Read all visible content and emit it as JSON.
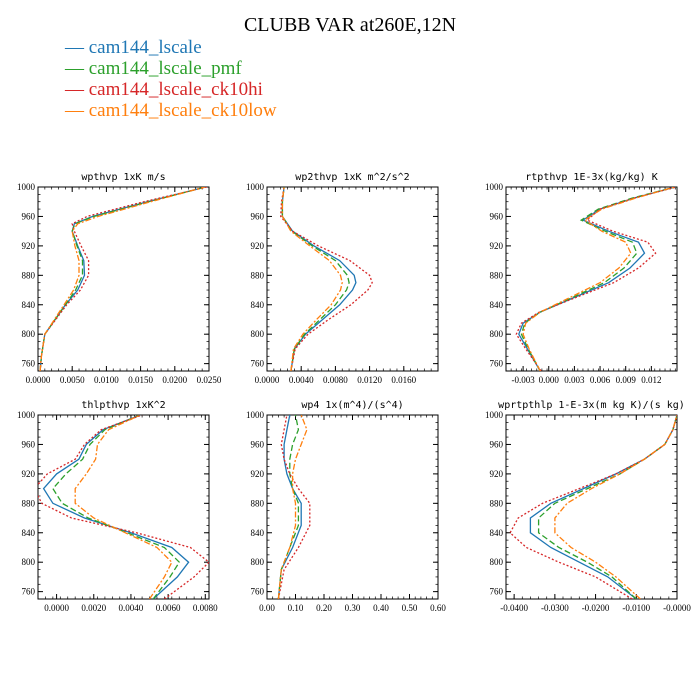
{
  "title": "CLUBB VAR at260E,12N",
  "legend": [
    {
      "name": "cam144_lscale",
      "color": "#1f77b4",
      "dash": "solid"
    },
    {
      "name": "cam144_lscale_pmf",
      "color": "#2ca02c",
      "dash": "dash"
    },
    {
      "name": "cam144_lscale_ck10hi",
      "color": "#d62728",
      "dash": "dot"
    },
    {
      "name": "cam144_lscale_ck10low",
      "color": "#ff7f0e",
      "dash": "dashdot"
    }
  ],
  "chart_data": [
    {
      "type": "line",
      "title": "wpthvp  1xK m/s",
      "xlim": [
        0,
        0.025
      ],
      "ylim": [
        1000,
        750
      ],
      "xticks": [
        "0.0000",
        "0.0050",
        "0.0100",
        "0.0150",
        "0.0200",
        "0.0250"
      ],
      "xtick_values": [
        0,
        0.005,
        0.01,
        0.015,
        0.02,
        0.025
      ],
      "yticks": [
        760,
        800,
        840,
        880,
        920,
        960,
        1000
      ],
      "y": [
        750,
        770,
        800,
        820,
        840,
        860,
        880,
        900,
        920,
        940,
        950,
        960,
        980,
        1000
      ],
      "series": [
        {
          "name": "cam144_lscale",
          "values": [
            0.0003,
            0.0005,
            0.001,
            0.0025,
            0.004,
            0.0058,
            0.0068,
            0.0067,
            0.0058,
            0.005,
            0.0053,
            0.008,
            0.016,
            0.0245
          ]
        },
        {
          "name": "cam144_lscale_pmf",
          "values": [
            0.0003,
            0.0005,
            0.001,
            0.0025,
            0.004,
            0.0055,
            0.0065,
            0.0065,
            0.0057,
            0.005,
            0.0054,
            0.0082,
            0.0162,
            0.0245
          ]
        },
        {
          "name": "cam144_lscale_ck10hi",
          "values": [
            0.0003,
            0.0005,
            0.001,
            0.0026,
            0.0042,
            0.0062,
            0.0074,
            0.0074,
            0.0063,
            0.0053,
            0.005,
            0.0072,
            0.0155,
            0.0247
          ]
        },
        {
          "name": "cam144_lscale_ck10low",
          "values": [
            0.0003,
            0.0005,
            0.001,
            0.0024,
            0.0038,
            0.0052,
            0.006,
            0.006,
            0.0054,
            0.005,
            0.0058,
            0.0088,
            0.0165,
            0.0244
          ]
        }
      ]
    },
    {
      "type": "line",
      "title": "wp2thvp  1xK m^2/s^2",
      "xlim": [
        0,
        0.02
      ],
      "ylim": [
        1000,
        750
      ],
      "xticks": [
        "0.0000",
        "0.0040",
        "0.0080",
        "0.0120",
        "0.0160"
      ],
      "xtick_values": [
        0,
        0.004,
        0.008,
        0.012,
        0.016
      ],
      "yticks": [
        760,
        800,
        840,
        880,
        920,
        960,
        1000
      ],
      "y": [
        750,
        780,
        800,
        820,
        840,
        860,
        870,
        880,
        900,
        920,
        940,
        960,
        980,
        1000
      ],
      "series": [
        {
          "name": "cam144_lscale",
          "values": [
            0.0028,
            0.0032,
            0.0045,
            0.0065,
            0.0085,
            0.01,
            0.0104,
            0.0102,
            0.0085,
            0.0055,
            0.003,
            0.0018,
            0.0018,
            0.002
          ]
        },
        {
          "name": "cam144_lscale_pmf",
          "values": [
            0.0028,
            0.0032,
            0.0044,
            0.0062,
            0.008,
            0.0093,
            0.0096,
            0.0094,
            0.008,
            0.0053,
            0.0029,
            0.0018,
            0.0018,
            0.002
          ]
        },
        {
          "name": "cam144_lscale_ck10hi",
          "values": [
            0.0028,
            0.0033,
            0.0048,
            0.0072,
            0.0098,
            0.0118,
            0.0123,
            0.012,
            0.0097,
            0.006,
            0.003,
            0.0016,
            0.0017,
            0.002
          ]
        },
        {
          "name": "cam144_lscale_ck10low",
          "values": [
            0.0028,
            0.0031,
            0.0042,
            0.0058,
            0.0075,
            0.0086,
            0.0088,
            0.0086,
            0.0073,
            0.005,
            0.0028,
            0.0018,
            0.0018,
            0.002
          ]
        }
      ]
    },
    {
      "type": "line",
      "title": "rtpthvp  1E-3x(kg/kg) K",
      "xlim": [
        -0.005,
        0.015
      ],
      "ylim": [
        1000,
        750
      ],
      "xticks": [
        "-0.003",
        "0.000",
        "0.003",
        "0.006",
        "0.009",
        "0.012"
      ],
      "xtick_values": [
        -0.003,
        0,
        0.003,
        0.006,
        0.009,
        0.012
      ],
      "yticks": [
        760,
        800,
        840,
        880,
        920,
        960,
        1000
      ],
      "y": [
        750,
        780,
        800,
        815,
        830,
        850,
        870,
        890,
        910,
        925,
        940,
        955,
        970,
        985,
        1000
      ],
      "series": [
        {
          "name": "cam144_lscale",
          "values": [
            -0.001,
            -0.0025,
            -0.0035,
            -0.003,
            -0.001,
            0.003,
            0.007,
            0.0095,
            0.0112,
            0.0105,
            0.007,
            0.004,
            0.006,
            0.01,
            0.0148
          ]
        },
        {
          "name": "cam144_lscale_pmf",
          "values": [
            -0.001,
            -0.0024,
            -0.0032,
            -0.0028,
            -0.001,
            0.0028,
            0.0065,
            0.0088,
            0.0103,
            0.0098,
            0.0066,
            0.0038,
            0.0058,
            0.0098,
            0.0148
          ]
        },
        {
          "name": "cam144_lscale_ck10hi",
          "values": [
            -0.0009,
            -0.0027,
            -0.0038,
            -0.0032,
            -0.0011,
            0.0032,
            0.0076,
            0.0105,
            0.0125,
            0.0116,
            0.0075,
            0.0045,
            0.006,
            0.01,
            0.0149
          ]
        },
        {
          "name": "cam144_lscale_ck10low",
          "values": [
            -0.001,
            -0.0023,
            -0.003,
            -0.0027,
            -0.001,
            0.0025,
            0.006,
            0.0082,
            0.0096,
            0.009,
            0.0062,
            0.0042,
            0.0062,
            0.0102,
            0.0147
          ]
        }
      ]
    },
    {
      "type": "line",
      "title": "thlpthvp  1xK^2",
      "xlim": [
        -0.001,
        0.0082
      ],
      "ylim": [
        1000,
        750
      ],
      "xticks": [
        "0.0000",
        "0.0020",
        "0.0040",
        "0.0060",
        "0.0080"
      ],
      "xtick_values": [
        0,
        0.002,
        0.004,
        0.006,
        0.008
      ],
      "yticks": [
        760,
        800,
        840,
        880,
        920,
        960,
        1000
      ],
      "y": [
        750,
        780,
        800,
        820,
        840,
        860,
        880,
        900,
        920,
        940,
        960,
        980,
        1000
      ],
      "series": [
        {
          "name": "cam144_lscale",
          "values": [
            0.0052,
            0.0065,
            0.0071,
            0.0062,
            0.004,
            0.0015,
            -0.0002,
            -0.0007,
            0.0,
            0.0012,
            0.0016,
            0.0025,
            0.0045
          ]
        },
        {
          "name": "cam144_lscale_pmf",
          "values": [
            0.0052,
            0.0061,
            0.0066,
            0.0058,
            0.0038,
            0.0017,
            0.0003,
            -0.0002,
            0.0005,
            0.0014,
            0.0018,
            0.0026,
            0.0045
          ]
        },
        {
          "name": "cam144_lscale_ck10hi",
          "values": [
            0.0058,
            0.0074,
            0.0082,
            0.0072,
            0.0043,
            0.0008,
            -0.0008,
            -0.0012,
            -0.0005,
            0.001,
            0.0015,
            0.0024,
            0.0046
          ]
        },
        {
          "name": "cam144_lscale_ck10low",
          "values": [
            0.005,
            0.0058,
            0.0062,
            0.0054,
            0.0037,
            0.002,
            0.001,
            0.001,
            0.0016,
            0.0021,
            0.0022,
            0.0028,
            0.0045
          ]
        }
      ]
    },
    {
      "type": "line",
      "title": "wp4  1x(m^4)/(s^4)",
      "xlim": [
        0,
        0.6
      ],
      "ylim": [
        1000,
        750
      ],
      "xticks": [
        "0.00",
        "0.10",
        "0.20",
        "0.30",
        "0.40",
        "0.50",
        "0.60"
      ],
      "xtick_values": [
        0,
        0.1,
        0.2,
        0.3,
        0.4,
        0.5,
        0.6
      ],
      "yticks": [
        760,
        800,
        840,
        880,
        920,
        960,
        1000
      ],
      "y": [
        750,
        790,
        820,
        850,
        880,
        900,
        920,
        940,
        960,
        980,
        1000
      ],
      "series": [
        {
          "name": "cam144_lscale",
          "values": [
            0.04,
            0.05,
            0.09,
            0.12,
            0.12,
            0.09,
            0.07,
            0.06,
            0.06,
            0.07,
            0.08
          ]
        },
        {
          "name": "cam144_lscale_pmf",
          "values": [
            0.04,
            0.05,
            0.08,
            0.11,
            0.11,
            0.09,
            0.08,
            0.08,
            0.09,
            0.11,
            0.1
          ]
        },
        {
          "name": "cam144_lscale_ck10hi",
          "values": [
            0.04,
            0.06,
            0.11,
            0.15,
            0.15,
            0.11,
            0.08,
            0.06,
            0.05,
            0.06,
            0.07
          ]
        },
        {
          "name": "cam144_lscale_ck10low",
          "values": [
            0.04,
            0.05,
            0.08,
            0.1,
            0.1,
            0.09,
            0.09,
            0.1,
            0.12,
            0.14,
            0.12
          ]
        }
      ]
    },
    {
      "type": "line",
      "title": "wprtpthlp  1-E-3x(m kg K)/(s kg)",
      "xlim": [
        -0.042,
        0
      ],
      "ylim": [
        1000,
        750
      ],
      "xticks": [
        "-0.0400",
        "-0.0300",
        "-0.0200",
        "-0.0100",
        "-0.0000"
      ],
      "xtick_values": [
        -0.04,
        -0.03,
        -0.02,
        -0.01,
        0
      ],
      "yticks": [
        760,
        800,
        840,
        880,
        920,
        960,
        1000
      ],
      "y": [
        750,
        780,
        800,
        820,
        840,
        860,
        880,
        900,
        920,
        940,
        960,
        980,
        1000
      ],
      "series": [
        {
          "name": "cam144_lscale",
          "values": [
            -0.01,
            -0.017,
            -0.024,
            -0.031,
            -0.036,
            -0.036,
            -0.031,
            -0.023,
            -0.015,
            -0.008,
            -0.003,
            -0.001,
            0.0
          ]
        },
        {
          "name": "cam144_lscale_pmf",
          "values": [
            -0.01,
            -0.016,
            -0.022,
            -0.029,
            -0.034,
            -0.034,
            -0.03,
            -0.022,
            -0.014,
            -0.008,
            -0.003,
            -0.001,
            0.0
          ]
        },
        {
          "name": "cam144_lscale_ck10hi",
          "values": [
            -0.011,
            -0.02,
            -0.029,
            -0.037,
            -0.041,
            -0.039,
            -0.033,
            -0.024,
            -0.015,
            -0.008,
            -0.003,
            -0.001,
            0.0
          ]
        },
        {
          "name": "cam144_lscale_ck10low",
          "values": [
            -0.009,
            -0.015,
            -0.02,
            -0.026,
            -0.03,
            -0.03,
            -0.027,
            -0.021,
            -0.014,
            -0.008,
            -0.003,
            -0.001,
            0.0
          ]
        }
      ]
    }
  ]
}
